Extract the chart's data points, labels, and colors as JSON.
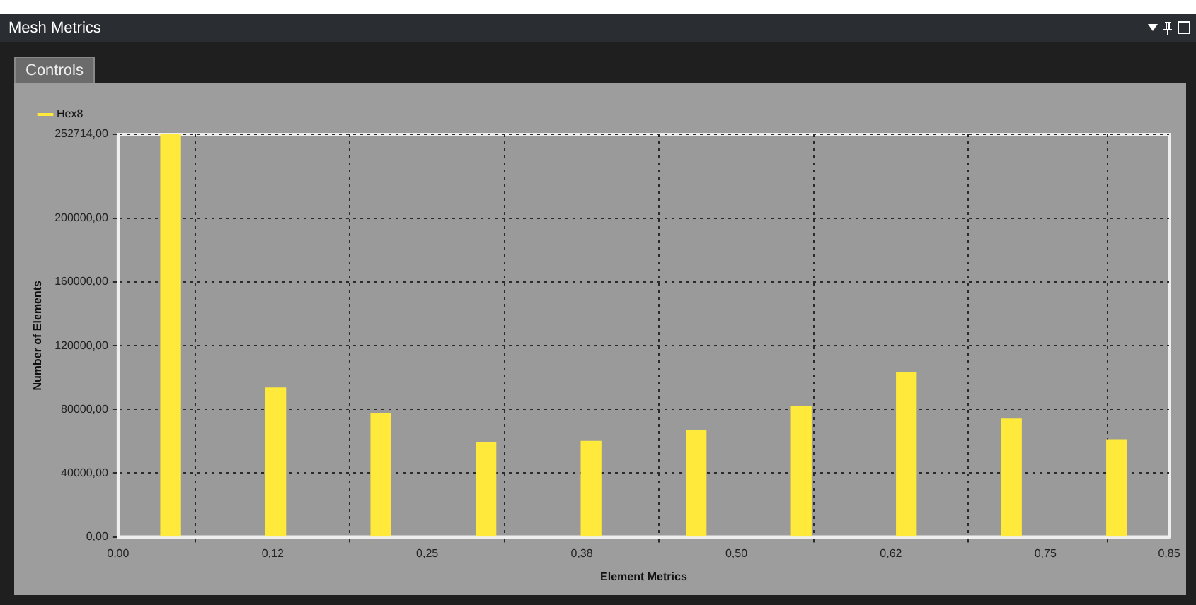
{
  "chart_data": {
    "type": "bar",
    "title": "Mesh Metrics",
    "xlabel": "Element Metrics",
    "ylabel": "Number of Elements",
    "annotations": [
      "Controls"
    ],
    "x": [
      0.0425,
      0.1275,
      0.2125,
      0.2975,
      0.3825,
      0.4675,
      0.5525,
      0.6375,
      0.7225,
      0.8075
    ],
    "series": [
      {
        "name": "Hex8",
        "color": "#ffe93a",
        "values": [
          252714,
          93500,
          77500,
          59000,
          60000,
          67000,
          82000,
          103000,
          74000,
          61000
        ]
      }
    ],
    "xlim": [
      0,
      0.85
    ],
    "xticks": [
      {
        "value": 0,
        "label": "0,00"
      },
      {
        "value": 0.125,
        "label": "0,12"
      },
      {
        "value": 0.25,
        "label": "0,25"
      },
      {
        "value": 0.375,
        "label": "0,38"
      },
      {
        "value": 0.5,
        "label": "0,50"
      },
      {
        "value": 0.625,
        "label": "0,62"
      },
      {
        "value": 0.75,
        "label": "0,75"
      },
      {
        "value": 0.85,
        "label": "0,85"
      }
    ],
    "ylim": [
      0,
      252714
    ],
    "yticks": [
      {
        "value": 0,
        "label": "0,00"
      },
      {
        "value": 40000,
        "label": "40000,00"
      },
      {
        "value": 80000,
        "label": "80000,00"
      },
      {
        "value": 120000,
        "label": "120000,00"
      },
      {
        "value": 160000,
        "label": "160000,00"
      },
      {
        "value": 200000,
        "label": "200000,00"
      },
      {
        "value": 252714,
        "label": "252714,00"
      }
    ],
    "grid": true,
    "legend": "top left"
  }
}
